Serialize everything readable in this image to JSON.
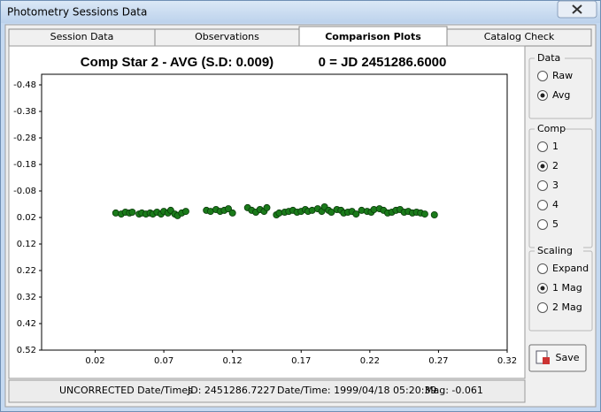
{
  "window": {
    "title": "Photometry Sessions Data"
  },
  "tabs": [
    {
      "label": "Session Data",
      "selected": false
    },
    {
      "label": "Observations",
      "selected": false
    },
    {
      "label": "Comparison Plots",
      "selected": true
    },
    {
      "label": "Catalog Check",
      "selected": false
    }
  ],
  "chart_data": {
    "type": "scatter",
    "title": "Comp Star 2 - AVG (S.D: 0.009)",
    "title_right": "0 = JD 2451286.6000",
    "color": "#1a7a1a",
    "xlim": [
      -0.019,
      0.32
    ],
    "xticks": [
      0.02,
      0.07,
      0.12,
      0.17,
      0.22,
      0.27,
      0.32
    ],
    "ylim": [
      0.52,
      -0.52
    ],
    "yticks": [
      -0.48,
      -0.38,
      -0.28,
      -0.18,
      -0.08,
      0.02,
      0.12,
      0.22,
      0.32,
      0.42,
      0.52
    ],
    "x": [
      0.035,
      0.039,
      0.042,
      0.045,
      0.047,
      0.052,
      0.054,
      0.057,
      0.06,
      0.062,
      0.065,
      0.068,
      0.07,
      0.073,
      0.075,
      0.078,
      0.08,
      0.083,
      0.086,
      0.101,
      0.104,
      0.108,
      0.111,
      0.114,
      0.117,
      0.12,
      0.131,
      0.134,
      0.137,
      0.14,
      0.143,
      0.145,
      0.152,
      0.154,
      0.158,
      0.161,
      0.164,
      0.167,
      0.17,
      0.173,
      0.175,
      0.178,
      0.182,
      0.185,
      0.187,
      0.19,
      0.192,
      0.196,
      0.199,
      0.201,
      0.204,
      0.207,
      0.21,
      0.214,
      0.218,
      0.221,
      0.223,
      0.227,
      0.23,
      0.233,
      0.236,
      0.239,
      0.242,
      0.245,
      0.248,
      0.251,
      0.254,
      0.257,
      0.26,
      0.267
    ],
    "values": [
      0.003,
      0.007,
      0.0,
      0.003,
      0.0,
      0.007,
      0.003,
      0.007,
      0.003,
      0.007,
      0.0,
      0.007,
      -0.003,
      0.003,
      -0.007,
      0.007,
      0.013,
      0.003,
      -0.003,
      -0.007,
      -0.003,
      -0.01,
      -0.003,
      -0.007,
      -0.013,
      0.003,
      -0.017,
      -0.007,
      0.0,
      -0.01,
      -0.003,
      -0.017,
      0.01,
      0.003,
      0.0,
      -0.003,
      -0.007,
      0.0,
      -0.003,
      -0.01,
      -0.003,
      -0.007,
      -0.013,
      -0.003,
      -0.02,
      -0.007,
      0.0,
      -0.01,
      -0.007,
      0.003,
      0.0,
      -0.003,
      0.007,
      -0.007,
      -0.003,
      0.0,
      -0.01,
      -0.013,
      -0.007,
      0.003,
      0.0,
      -0.007,
      -0.01,
      0.0,
      -0.003,
      0.003,
      0.0,
      0.003,
      0.007,
      0.01
    ]
  },
  "groups": [
    {
      "title": "Data",
      "options": [
        {
          "label": "Raw",
          "selected": false
        },
        {
          "label": "Avg",
          "selected": true
        }
      ]
    },
    {
      "title": "Comp",
      "options": [
        {
          "label": "1",
          "selected": false
        },
        {
          "label": "2",
          "selected": true
        },
        {
          "label": "3",
          "selected": false
        },
        {
          "label": "4",
          "selected": false
        },
        {
          "label": "5",
          "selected": false
        }
      ]
    },
    {
      "title": "Scaling",
      "options": [
        {
          "label": "Expand",
          "selected": false
        },
        {
          "label": "1 Mag",
          "selected": true
        },
        {
          "label": "2 Mag",
          "selected": false
        }
      ]
    }
  ],
  "save_button": "Save",
  "status": [
    "UNCORRECTED Date/Times",
    "JD: 2451286.7227",
    "Date/Time: 1999/04/18 05:20:39",
    "Mag: -0.061"
  ]
}
